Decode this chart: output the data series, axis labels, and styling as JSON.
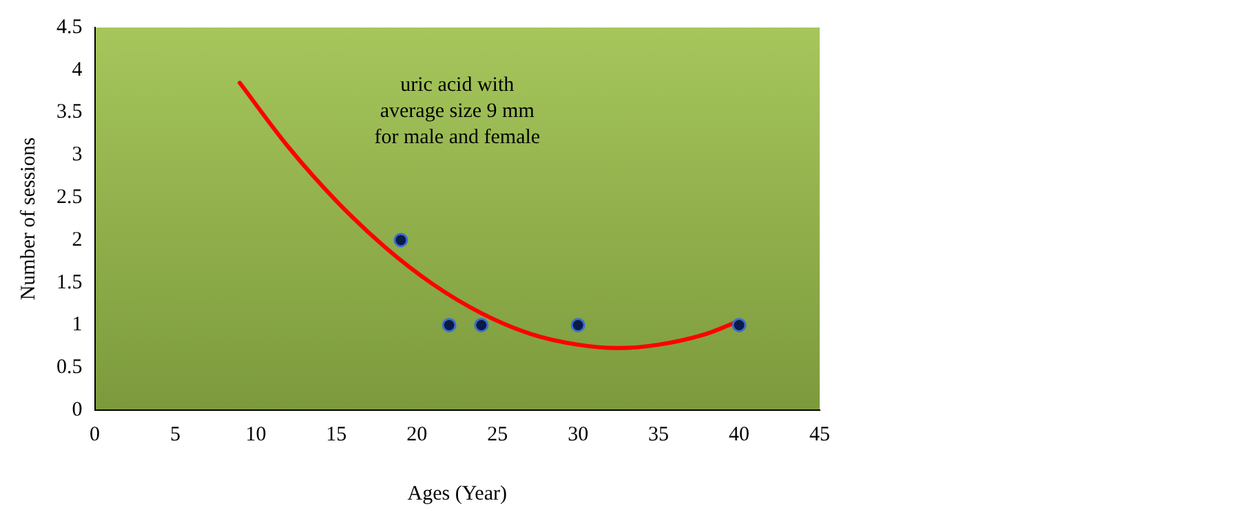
{
  "chart_data": {
    "type": "scatter",
    "xlabel": "Ages (Year)",
    "ylabel": "Number of sessions",
    "annotations": [
      "uric acid with\naverage size 9 mm\nfor male and female"
    ],
    "xlim": [
      0,
      45
    ],
    "xticks": [
      0,
      5,
      10,
      15,
      20,
      25,
      30,
      35,
      40,
      45
    ],
    "ylim": [
      0,
      4.5
    ],
    "yticks": [
      0,
      0.5,
      1,
      1.5,
      2,
      2.5,
      3,
      3.5,
      4,
      4.5
    ],
    "grid": false,
    "legend": false,
    "marker": "circle",
    "series": [
      {
        "type": "scatter",
        "color": "#0a1a4a",
        "x": [
          19,
          22,
          24,
          30,
          40
        ],
        "values": [
          2,
          1,
          1,
          1,
          1
        ]
      },
      {
        "type": "line",
        "color": "#ff0000",
        "marker": "none",
        "line_style": "solid",
        "x": [
          9,
          12,
          15,
          18,
          21,
          24,
          27,
          30,
          32.5,
          35,
          38,
          40
        ],
        "values": [
          3.85,
          3.1,
          2.46,
          1.92,
          1.48,
          1.14,
          0.9,
          0.77,
          0.73,
          0.77,
          0.9,
          1.05
        ]
      }
    ]
  }
}
